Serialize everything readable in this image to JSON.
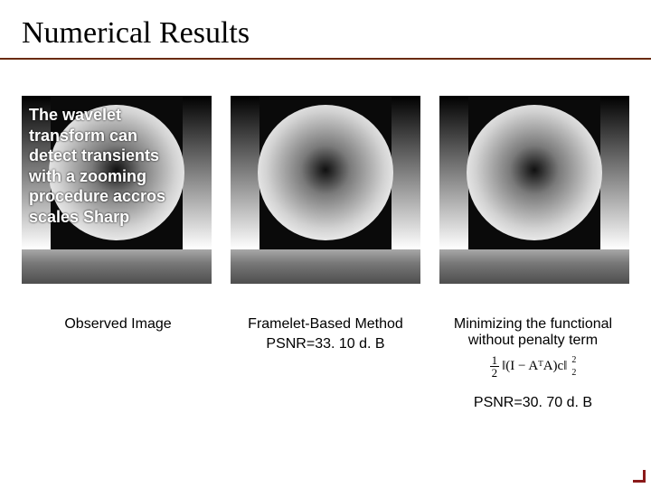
{
  "title": "Numerical Results",
  "title_underline_color": "#6a2a0a",
  "panels": {
    "overlay_text": "The wavelet transform can detect transients with a zooming procedure accros scales Sharp"
  },
  "captions": {
    "c1": {
      "line1": "Observed Image"
    },
    "c2": {
      "line1": "Framelet-Based Method",
      "line2": "PSNR=33. 10 d. B"
    },
    "c3": {
      "line1": "Minimizing the functional",
      "line2": "without penalty term",
      "psnr": "PSNR=30. 70 d. B"
    }
  },
  "formula": {
    "body": "‖(I − AᵀA)c‖",
    "half_num": "1",
    "half_den": "2",
    "sup": "2",
    "sub": "2"
  },
  "colors": {
    "background": "#ffffff",
    "text": "#000000",
    "corner_accent": "#8b1a1a"
  }
}
